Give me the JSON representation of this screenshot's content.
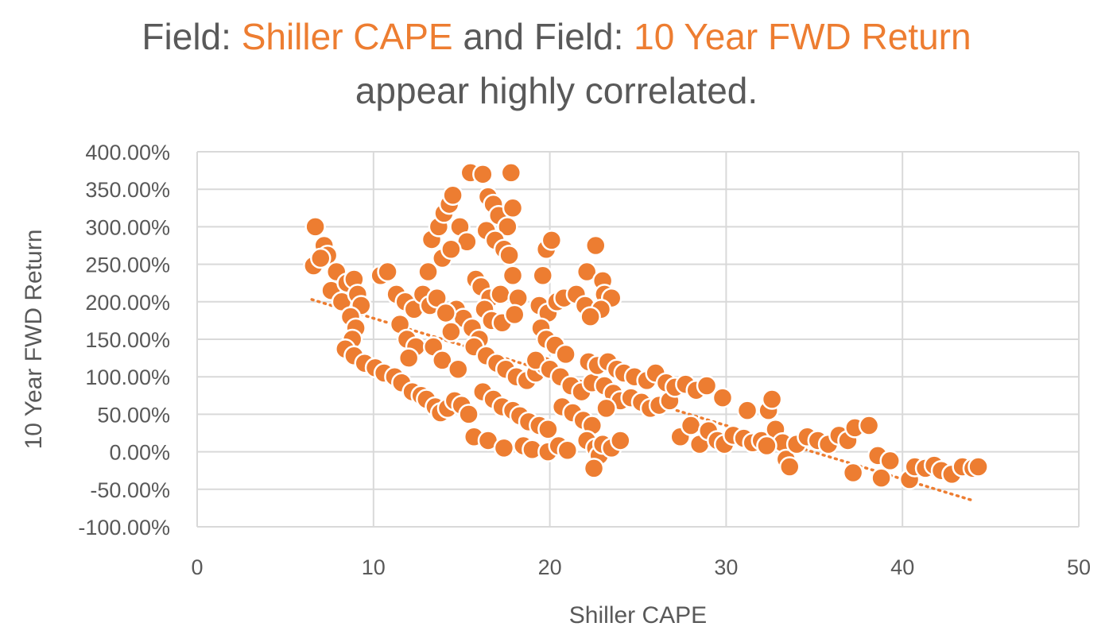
{
  "title": {
    "line1_prefix": "Field: ",
    "field_x": "Shiller CAPE",
    "line1_middle": " and Field: ",
    "field_y": "10 Year FWD Return",
    "line2": "appear highly correlated."
  },
  "colors": {
    "marker": "#ED7D31",
    "marker_stroke": "#ffffff",
    "grid": "#D9D9D9",
    "text": "#595959",
    "trendline": "#ED7D31"
  },
  "chart_data": {
    "type": "scatter",
    "xlabel": "Shiller CAPE",
    "ylabel": "10 Year FWD Return",
    "xlim": [
      0,
      50
    ],
    "ylim": [
      -100,
      400
    ],
    "xticks": [
      0,
      10,
      20,
      30,
      40,
      50
    ],
    "yticks": [
      -100,
      -50,
      0,
      50,
      100,
      150,
      200,
      250,
      300,
      350,
      400
    ],
    "ytick_format": "percent_2dp",
    "grid": true,
    "legend": "none",
    "trendline": {
      "type": "linear",
      "dotted": true,
      "x": [
        6.5,
        44
      ],
      "y": [
        203,
        -65
      ]
    },
    "points": [
      [
        6.7,
        300
      ],
      [
        6.6,
        248
      ],
      [
        7.2,
        275
      ],
      [
        7.4,
        262
      ],
      [
        7.0,
        258
      ],
      [
        7.6,
        215
      ],
      [
        7.9,
        240
      ],
      [
        8.2,
        200
      ],
      [
        8.5,
        225
      ],
      [
        8.9,
        230
      ],
      [
        9.1,
        210
      ],
      [
        9.3,
        195
      ],
      [
        8.7,
        180
      ],
      [
        9.0,
        165
      ],
      [
        8.8,
        150
      ],
      [
        8.4,
        137
      ],
      [
        8.9,
        128
      ],
      [
        9.5,
        118
      ],
      [
        10.1,
        112
      ],
      [
        10.6,
        105
      ],
      [
        11.2,
        100
      ],
      [
        10.4,
        235
      ],
      [
        10.8,
        240
      ],
      [
        11.3,
        210
      ],
      [
        11.8,
        200
      ],
      [
        12.3,
        190
      ],
      [
        12.8,
        210
      ],
      [
        13.2,
        195
      ],
      [
        11.5,
        170
      ],
      [
        11.9,
        150
      ],
      [
        12.4,
        140
      ],
      [
        12.0,
        125
      ],
      [
        11.6,
        92
      ],
      [
        12.2,
        80
      ],
      [
        12.7,
        75
      ],
      [
        13.0,
        70
      ],
      [
        13.5,
        60
      ],
      [
        13.8,
        52
      ],
      [
        14.2,
        58
      ],
      [
        14.6,
        68
      ],
      [
        15.0,
        62
      ],
      [
        15.4,
        50
      ],
      [
        13.1,
        240
      ],
      [
        13.3,
        283
      ],
      [
        13.7,
        300
      ],
      [
        14.0,
        318
      ],
      [
        14.3,
        330
      ],
      [
        14.5,
        342
      ],
      [
        14.9,
        300
      ],
      [
        15.3,
        280
      ],
      [
        13.9,
        258
      ],
      [
        14.4,
        270
      ],
      [
        14.7,
        190
      ],
      [
        15.1,
        178
      ],
      [
        15.6,
        165
      ],
      [
        16.0,
        150
      ],
      [
        13.6,
        205
      ],
      [
        14.1,
        185
      ],
      [
        14.4,
        160
      ],
      [
        13.4,
        140
      ],
      [
        13.9,
        122
      ],
      [
        14.8,
        110
      ],
      [
        15.5,
        372
      ],
      [
        16.2,
        370
      ],
      [
        17.8,
        372
      ],
      [
        16.5,
        340
      ],
      [
        16.8,
        330
      ],
      [
        17.1,
        315
      ],
      [
        17.6,
        300
      ],
      [
        17.9,
        325
      ],
      [
        16.4,
        295
      ],
      [
        16.9,
        282
      ],
      [
        17.4,
        270
      ],
      [
        17.7,
        262
      ],
      [
        15.8,
        230
      ],
      [
        16.1,
        220
      ],
      [
        16.6,
        205
      ],
      [
        17.2,
        210
      ],
      [
        17.9,
        235
      ],
      [
        18.2,
        205
      ],
      [
        16.3,
        190
      ],
      [
        16.7,
        175
      ],
      [
        17.3,
        172
      ],
      [
        18.0,
        183
      ],
      [
        15.7,
        140
      ],
      [
        16.4,
        128
      ],
      [
        17.0,
        118
      ],
      [
        17.5,
        110
      ],
      [
        18.1,
        100
      ],
      [
        18.7,
        95
      ],
      [
        19.2,
        105
      ],
      [
        19.7,
        115
      ],
      [
        16.2,
        80
      ],
      [
        16.8,
        70
      ],
      [
        17.3,
        60
      ],
      [
        17.9,
        55
      ],
      [
        18.3,
        48
      ],
      [
        18.8,
        40
      ],
      [
        19.4,
        35
      ],
      [
        19.9,
        30
      ],
      [
        15.7,
        20
      ],
      [
        16.5,
        15
      ],
      [
        17.4,
        5
      ],
      [
        18.5,
        8
      ],
      [
        19.0,
        3
      ],
      [
        19.9,
        0
      ],
      [
        20.5,
        8
      ],
      [
        21.0,
        2
      ],
      [
        19.6,
        235
      ],
      [
        19.8,
        270
      ],
      [
        20.1,
        282
      ],
      [
        19.4,
        195
      ],
      [
        19.9,
        185
      ],
      [
        20.4,
        200
      ],
      [
        20.8,
        205
      ],
      [
        19.5,
        165
      ],
      [
        19.8,
        150
      ],
      [
        20.3,
        142
      ],
      [
        20.9,
        130
      ],
      [
        19.2,
        122
      ],
      [
        20.0,
        110
      ],
      [
        20.6,
        100
      ],
      [
        21.2,
        88
      ],
      [
        21.8,
        80
      ],
      [
        22.4,
        92
      ],
      [
        20.7,
        60
      ],
      [
        21.3,
        52
      ],
      [
        21.9,
        42
      ],
      [
        22.4,
        35
      ],
      [
        22.1,
        15
      ],
      [
        22.6,
        5
      ],
      [
        22.8,
        -5
      ],
      [
        22.5,
        -22
      ],
      [
        23.0,
        10
      ],
      [
        23.5,
        5
      ],
      [
        24.0,
        15
      ],
      [
        21.5,
        210
      ],
      [
        22.0,
        195
      ],
      [
        22.1,
        240
      ],
      [
        22.6,
        275
      ],
      [
        23.0,
        228
      ],
      [
        23.1,
        210
      ],
      [
        23.5,
        205
      ],
      [
        22.9,
        190
      ],
      [
        22.3,
        180
      ],
      [
        22.2,
        120
      ],
      [
        22.7,
        115
      ],
      [
        23.3,
        120
      ],
      [
        23.8,
        110
      ],
      [
        24.2,
        105
      ],
      [
        24.8,
        100
      ],
      [
        23.1,
        88
      ],
      [
        23.6,
        78
      ],
      [
        24.0,
        68
      ],
      [
        23.2,
        58
      ],
      [
        24.6,
        72
      ],
      [
        25.2,
        66
      ],
      [
        25.7,
        58
      ],
      [
        26.2,
        62
      ],
      [
        26.8,
        68
      ],
      [
        25.5,
        95
      ],
      [
        26.0,
        105
      ],
      [
        26.6,
        92
      ],
      [
        27.1,
        86
      ],
      [
        27.7,
        90
      ],
      [
        28.3,
        82
      ],
      [
        28.9,
        88
      ],
      [
        29.8,
        72
      ],
      [
        27.4,
        20
      ],
      [
        28.0,
        35
      ],
      [
        28.5,
        10
      ],
      [
        29.0,
        28
      ],
      [
        29.5,
        15
      ],
      [
        29.9,
        10
      ],
      [
        30.4,
        22
      ],
      [
        31.0,
        18
      ],
      [
        31.2,
        55
      ],
      [
        31.5,
        12
      ],
      [
        32.0,
        15
      ],
      [
        32.4,
        55
      ],
      [
        32.6,
        70
      ],
      [
        32.8,
        30
      ],
      [
        33.2,
        12
      ],
      [
        33.4,
        -10
      ],
      [
        33.6,
        -20
      ],
      [
        32.3,
        8
      ],
      [
        34.0,
        10
      ],
      [
        34.6,
        20
      ],
      [
        35.2,
        15
      ],
      [
        35.8,
        10
      ],
      [
        36.4,
        22
      ],
      [
        36.9,
        15
      ],
      [
        37.3,
        32
      ],
      [
        37.2,
        -28
      ],
      [
        38.1,
        35
      ],
      [
        38.6,
        -5
      ],
      [
        38.8,
        -35
      ],
      [
        39.3,
        -12
      ],
      [
        40.4,
        -37
      ],
      [
        40.7,
        -20
      ],
      [
        41.3,
        -22
      ],
      [
        41.8,
        -18
      ],
      [
        42.2,
        -25
      ],
      [
        42.8,
        -30
      ],
      [
        43.4,
        -20
      ],
      [
        44.0,
        -22
      ],
      [
        44.3,
        -20
      ]
    ]
  }
}
